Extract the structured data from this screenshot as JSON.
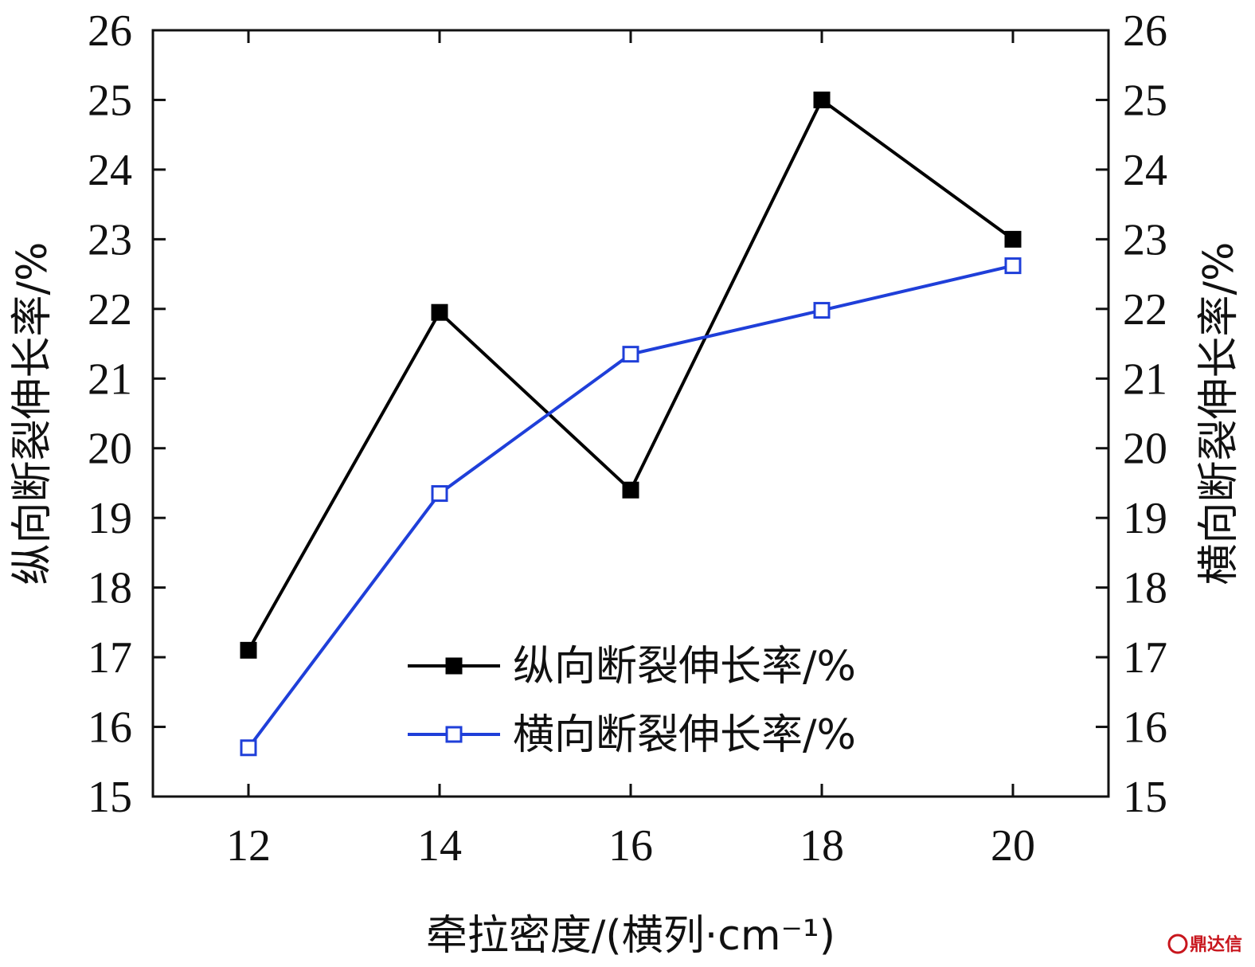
{
  "chart_data": {
    "type": "line",
    "x": [
      12,
      14,
      16,
      18,
      20
    ],
    "xlabel": "牵拉密度/(横列·cm⁻¹)",
    "ylabel_left": "纵向断裂伸长率/%",
    "ylabel_right": "横向断裂伸长率/%",
    "xlim": [
      11,
      21
    ],
    "ylim": [
      15,
      26
    ],
    "xticks": [
      "12",
      "14",
      "16",
      "18",
      "20"
    ],
    "yticks": [
      "15",
      "16",
      "17",
      "18",
      "19",
      "20",
      "21",
      "22",
      "23",
      "24",
      "25",
      "26"
    ],
    "legend_position": "lower-center",
    "series": [
      {
        "name": "纵向断裂伸长率/%",
        "color": "#000000",
        "marker": "filled-square",
        "axis": "left",
        "values": [
          17.1,
          21.95,
          19.4,
          25.0,
          23.0
        ]
      },
      {
        "name": "横向断裂伸长率/%",
        "color": "#1f3fd9",
        "marker": "open-square",
        "axis": "right",
        "values": [
          15.7,
          19.35,
          21.35,
          21.98,
          22.62
        ]
      }
    ]
  },
  "watermark": {
    "text": "鼎达信"
  }
}
